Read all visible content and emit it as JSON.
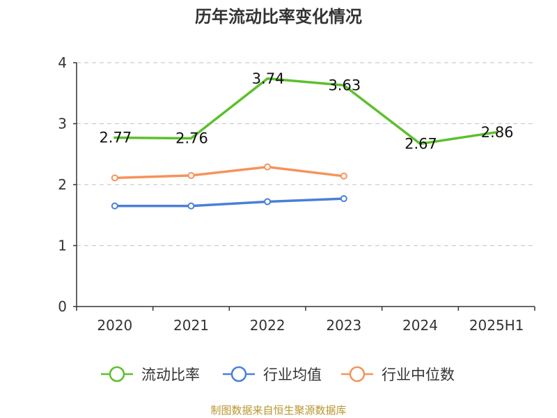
{
  "chart_data": {
    "type": "line",
    "title": "历年流动比率变化情况",
    "categories": [
      "2020",
      "2021",
      "2022",
      "2023",
      "2024",
      "2025H1"
    ],
    "ylim": [
      0,
      4
    ],
    "yticks": [
      0,
      1,
      2,
      3,
      4
    ],
    "grid": true,
    "legend_position": "bottom",
    "series": [
      {
        "name": "流动比率",
        "color": "#5cc02b",
        "values": [
          2.77,
          2.76,
          3.74,
          3.63,
          2.67,
          2.86
        ],
        "labels": [
          "2.77",
          "2.76",
          "3.74",
          "3.63",
          "2.67",
          "2.86"
        ],
        "show_markers": false
      },
      {
        "name": "行业均值",
        "color": "#4a7fd8",
        "values": [
          1.65,
          1.65,
          1.72,
          1.77,
          null,
          null
        ],
        "show_markers": true
      },
      {
        "name": "行业中位数",
        "color": "#f5935a",
        "values": [
          2.11,
          2.15,
          2.29,
          2.14,
          null,
          null
        ],
        "show_markers": true
      }
    ]
  },
  "footer": {
    "source": "制图数据来自恒生聚源数据库"
  }
}
